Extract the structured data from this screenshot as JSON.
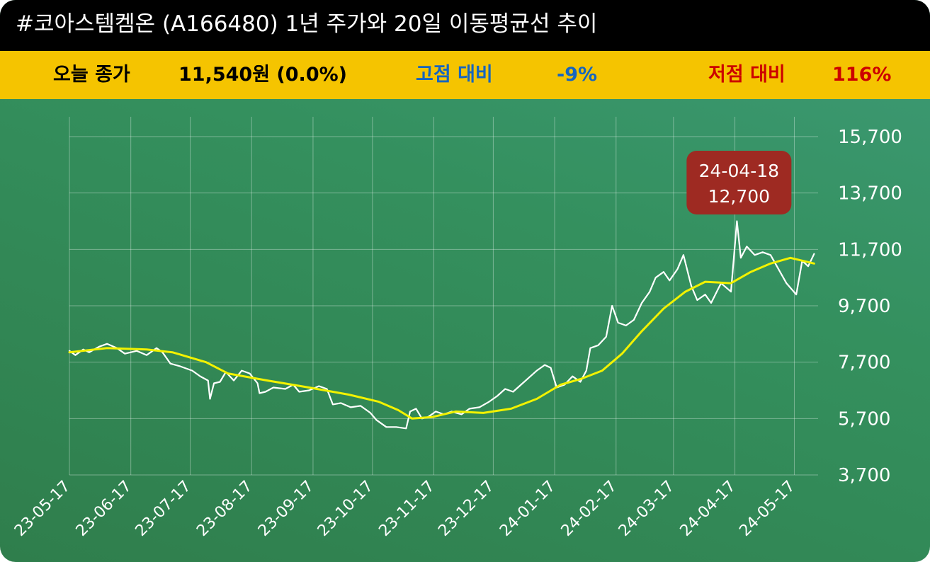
{
  "header": {
    "title": "#코아스템켐온 (A166480) 1년 주가와 20일 이동평균선 추이"
  },
  "info": {
    "close_label": "오늘 종가",
    "close_value": "11,540원 (0.0%)",
    "high_label": "고점 대비",
    "high_value": "-9%",
    "low_label": "저점 대비",
    "low_value": "116%"
  },
  "colors": {
    "price_line": "#ffffff",
    "ma_line": "#f2f200",
    "title_bg": "#000000",
    "info_bg": "#f5c400",
    "high_color": "#1565c0",
    "low_color": "#cc0000",
    "tooltip_bg": "#9e2a22"
  },
  "chart_data": {
    "type": "line",
    "ylim": [
      3700,
      15700
    ],
    "yticks": [
      "15,700",
      "13,700",
      "11,700",
      "9,700",
      "7,700",
      "5,700",
      "3,700"
    ],
    "x_ticks": [
      "23-05-17",
      "23-06-17",
      "23-07-17",
      "23-08-17",
      "23-09-17",
      "23-10-17",
      "23-11-17",
      "23-12-17",
      "24-01-17",
      "24-02-17",
      "24-03-17",
      "24-04-17",
      "24-05-17"
    ],
    "x_start": "2023-05-17",
    "x_end": "2024-05-29",
    "grid": true,
    "series": [
      {
        "key": "price",
        "points": [
          [
            "2023-05-17",
            8100
          ],
          [
            "2023-05-20",
            7950
          ],
          [
            "2023-05-24",
            8150
          ],
          [
            "2023-05-27",
            8050
          ],
          [
            "2023-06-01",
            8250
          ],
          [
            "2023-06-05",
            8350
          ],
          [
            "2023-06-10",
            8200
          ],
          [
            "2023-06-14",
            8000
          ],
          [
            "2023-06-20",
            8100
          ],
          [
            "2023-06-25",
            7950
          ],
          [
            "2023-06-30",
            8200
          ],
          [
            "2023-07-03",
            8050
          ],
          [
            "2023-07-07",
            7650
          ],
          [
            "2023-07-12",
            7550
          ],
          [
            "2023-07-18",
            7400
          ],
          [
            "2023-07-22",
            7200
          ],
          [
            "2023-07-26",
            7050
          ],
          [
            "2023-07-27",
            6400
          ],
          [
            "2023-07-29",
            6950
          ],
          [
            "2023-08-01",
            7000
          ],
          [
            "2023-08-04",
            7350
          ],
          [
            "2023-08-08",
            7050
          ],
          [
            "2023-08-12",
            7400
          ],
          [
            "2023-08-16",
            7300
          ],
          [
            "2023-08-20",
            6950
          ],
          [
            "2023-08-21",
            6600
          ],
          [
            "2023-08-24",
            6650
          ],
          [
            "2023-08-28",
            6800
          ],
          [
            "2023-09-03",
            6750
          ],
          [
            "2023-09-07",
            6900
          ],
          [
            "2023-09-10",
            6650
          ],
          [
            "2023-09-15",
            6700
          ],
          [
            "2023-09-20",
            6850
          ],
          [
            "2023-09-24",
            6750
          ],
          [
            "2023-09-27",
            6200
          ],
          [
            "2023-10-01",
            6250
          ],
          [
            "2023-10-06",
            6100
          ],
          [
            "2023-10-11",
            6150
          ],
          [
            "2023-10-16",
            5900
          ],
          [
            "2023-10-19",
            5650
          ],
          [
            "2023-10-24",
            5400
          ],
          [
            "2023-10-29",
            5400
          ],
          [
            "2023-11-03",
            5350
          ],
          [
            "2023-11-05",
            5950
          ],
          [
            "2023-11-08",
            6050
          ],
          [
            "2023-11-11",
            5700
          ],
          [
            "2023-11-14",
            5750
          ],
          [
            "2023-11-18",
            5950
          ],
          [
            "2023-11-22",
            5850
          ],
          [
            "2023-11-26",
            5950
          ],
          [
            "2023-12-01",
            5850
          ],
          [
            "2023-12-05",
            6050
          ],
          [
            "2023-12-10",
            6100
          ],
          [
            "2023-12-15",
            6300
          ],
          [
            "2023-12-19",
            6500
          ],
          [
            "2023-12-23",
            6750
          ],
          [
            "2023-12-27",
            6650
          ],
          [
            "2023-12-31",
            6900
          ],
          [
            "2024-01-04",
            7150
          ],
          [
            "2024-01-08",
            7400
          ],
          [
            "2024-01-12",
            7600
          ],
          [
            "2024-01-15",
            7500
          ],
          [
            "2024-01-18",
            6800
          ],
          [
            "2024-01-22",
            6900
          ],
          [
            "2024-01-26",
            7200
          ],
          [
            "2024-01-30",
            7000
          ],
          [
            "2024-02-02",
            7400
          ],
          [
            "2024-02-04",
            8200
          ],
          [
            "2024-02-08",
            8300
          ],
          [
            "2024-02-12",
            8600
          ],
          [
            "2024-02-15",
            9700
          ],
          [
            "2024-02-18",
            9100
          ],
          [
            "2024-02-22",
            9000
          ],
          [
            "2024-02-26",
            9200
          ],
          [
            "2024-03-01",
            9800
          ],
          [
            "2024-03-05",
            10200
          ],
          [
            "2024-03-08",
            10700
          ],
          [
            "2024-03-12",
            10900
          ],
          [
            "2024-03-15",
            10600
          ],
          [
            "2024-03-19",
            11000
          ],
          [
            "2024-03-22",
            11500
          ],
          [
            "2024-03-26",
            10400
          ],
          [
            "2024-03-29",
            9900
          ],
          [
            "2024-04-02",
            10100
          ],
          [
            "2024-04-05",
            9800
          ],
          [
            "2024-04-10",
            10500
          ],
          [
            "2024-04-15",
            10200
          ],
          [
            "2024-04-18",
            12700
          ],
          [
            "2024-04-20",
            11400
          ],
          [
            "2024-04-23",
            11800
          ],
          [
            "2024-04-27",
            11500
          ],
          [
            "2024-05-01",
            11600
          ],
          [
            "2024-05-05",
            11500
          ],
          [
            "2024-05-09",
            11000
          ],
          [
            "2024-05-13",
            10500
          ],
          [
            "2024-05-18",
            10100
          ],
          [
            "2024-05-21",
            11300
          ],
          [
            "2024-05-24",
            11100
          ],
          [
            "2024-05-27",
            11540
          ]
        ]
      },
      {
        "key": "ma20",
        "points": [
          [
            "2023-05-17",
            8050
          ],
          [
            "2023-06-05",
            8200
          ],
          [
            "2023-06-25",
            8150
          ],
          [
            "2023-07-08",
            8050
          ],
          [
            "2023-07-25",
            7700
          ],
          [
            "2023-08-05",
            7300
          ],
          [
            "2023-08-25",
            7050
          ],
          [
            "2023-09-15",
            6800
          ],
          [
            "2023-10-05",
            6550
          ],
          [
            "2023-10-20",
            6300
          ],
          [
            "2023-10-30",
            6000
          ],
          [
            "2023-11-06",
            5700
          ],
          [
            "2023-11-16",
            5750
          ],
          [
            "2023-11-28",
            5950
          ],
          [
            "2023-12-12",
            5900
          ],
          [
            "2023-12-26",
            6050
          ],
          [
            "2024-01-08",
            6400
          ],
          [
            "2024-01-20",
            6900
          ],
          [
            "2024-01-30",
            7100
          ],
          [
            "2024-02-10",
            7400
          ],
          [
            "2024-02-20",
            8000
          ],
          [
            "2024-03-01",
            8800
          ],
          [
            "2024-03-12",
            9600
          ],
          [
            "2024-03-23",
            10200
          ],
          [
            "2024-04-02",
            10550
          ],
          [
            "2024-04-15",
            10500
          ],
          [
            "2024-04-25",
            10900
          ],
          [
            "2024-05-05",
            11200
          ],
          [
            "2024-05-15",
            11400
          ],
          [
            "2024-05-27",
            11200
          ]
        ]
      }
    ],
    "annotation": {
      "date": "24-04-18",
      "value": "12,700",
      "x": "2024-04-18",
      "y": 12700
    }
  }
}
